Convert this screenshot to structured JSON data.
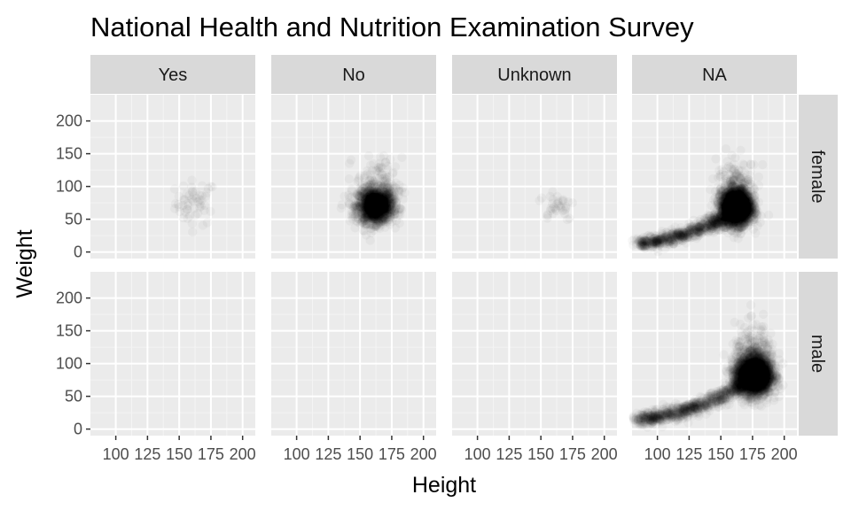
{
  "chart_data": {
    "type": "scatter",
    "title": "National Health and Nutrition Examination Survey",
    "xlabel": "Height",
    "ylabel": "Weight",
    "xlim": [
      80,
      210
    ],
    "ylim": [
      -10,
      240
    ],
    "x_ticks": [
      100,
      125,
      150,
      175,
      200
    ],
    "x_tick_labels": [
      "100",
      "125",
      "150",
      "175",
      "200"
    ],
    "y_ticks": [
      0,
      50,
      100,
      150,
      200
    ],
    "y_tick_labels": [
      "0",
      "50",
      "100",
      "150",
      "200"
    ],
    "facet_cols": [
      "Yes",
      "No",
      "Unknown",
      "NA"
    ],
    "facet_rows": [
      "female",
      "male"
    ],
    "grid": true,
    "point_alpha": 0.03,
    "panels": [
      {
        "col": "Yes",
        "row": "female",
        "clusters": [
          {
            "cx": 163,
            "cy": 75,
            "sx": 8,
            "sy": 17,
            "n": 55
          }
        ]
      },
      {
        "col": "No",
        "row": "female",
        "clusters": [
          {
            "cx": 162,
            "cy": 70,
            "sx": 7,
            "sy": 13,
            "n": 1500
          },
          {
            "cx": 165,
            "cy": 100,
            "sx": 9,
            "sy": 22,
            "n": 160
          }
        ]
      },
      {
        "col": "Unknown",
        "row": "female",
        "clusters": [
          {
            "cx": 163,
            "cy": 72,
            "sx": 7,
            "sy": 12,
            "n": 35
          }
        ]
      },
      {
        "col": "NA",
        "row": "female",
        "curve": {
          "x": [
            86,
            100,
            115,
            130,
            145,
            152
          ],
          "y": [
            13,
            17,
            24,
            32,
            44,
            52
          ],
          "n": 700,
          "jitter_x": 4,
          "jitter_y": 5
        },
        "clusters": [
          {
            "cx": 162,
            "cy": 68,
            "sx": 6,
            "sy": 13,
            "n": 2500
          },
          {
            "cx": 163,
            "cy": 95,
            "sx": 8,
            "sy": 22,
            "n": 250
          }
        ]
      },
      {
        "col": "Yes",
        "row": "male",
        "clusters": []
      },
      {
        "col": "No",
        "row": "male",
        "clusters": []
      },
      {
        "col": "Unknown",
        "row": "male",
        "clusters": []
      },
      {
        "col": "NA",
        "row": "male",
        "curve": {
          "x": [
            86,
            100,
            115,
            130,
            145,
            160,
            170
          ],
          "y": [
            14,
            18,
            25,
            33,
            45,
            60,
            72
          ],
          "n": 800,
          "jitter_x": 4,
          "jitter_y": 5
        },
        "clusters": [
          {
            "cx": 176,
            "cy": 82,
            "sx": 7,
            "sy": 15,
            "n": 2500
          },
          {
            "cx": 177,
            "cy": 110,
            "sx": 8,
            "sy": 24,
            "n": 250
          }
        ]
      }
    ]
  }
}
